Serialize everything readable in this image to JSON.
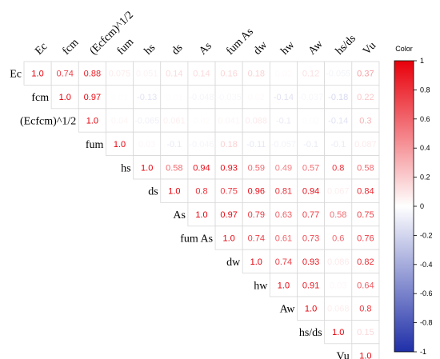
{
  "chart_data": {
    "type": "heatmap",
    "variables": [
      "Ec",
      "fcm",
      "(Ecfcm)^1/2",
      "fum",
      "hs",
      "ds",
      "As",
      "fum As",
      "dw",
      "hw",
      "Aw",
      "hs/ds",
      "Vu"
    ],
    "matrix": [
      [
        1.0,
        0.74,
        0.88,
        0.075,
        0.051,
        0.14,
        0.14,
        0.16,
        0.18,
        0.02,
        0.12,
        -0.055,
        0.37
      ],
      [
        null,
        1.0,
        0.97,
        0.01,
        -0.13,
        0.01,
        -0.048,
        -0.035,
        0.02,
        -0.14,
        -0.037,
        -0.18,
        0.22
      ],
      [
        null,
        null,
        1.0,
        0.04,
        -0.065,
        0.061,
        0.02,
        0.041,
        0.088,
        -0.1,
        0.02,
        -0.14,
        0.3
      ],
      [
        null,
        null,
        null,
        1.0,
        0.03,
        -0.1,
        -0.046,
        0.18,
        -0.11,
        -0.057,
        -0.098,
        -0.1,
        0.087
      ],
      [
        null,
        null,
        null,
        null,
        1.0,
        0.58,
        0.94,
        0.93,
        0.59,
        0.49,
        0.57,
        0.8,
        0.58
      ],
      [
        null,
        null,
        null,
        null,
        null,
        1.0,
        0.8,
        0.75,
        0.96,
        0.81,
        0.94,
        0.067,
        0.84
      ],
      [
        null,
        null,
        null,
        null,
        null,
        null,
        1.0,
        0.97,
        0.79,
        0.63,
        0.77,
        0.58,
        0.75
      ],
      [
        null,
        null,
        null,
        null,
        null,
        null,
        null,
        1.0,
        0.74,
        0.61,
        0.73,
        0.6,
        0.76
      ],
      [
        null,
        null,
        null,
        null,
        null,
        null,
        null,
        null,
        1.0,
        0.74,
        0.93,
        0.086,
        0.82
      ],
      [
        null,
        null,
        null,
        null,
        null,
        null,
        null,
        null,
        null,
        1.0,
        0.91,
        0.03,
        0.64
      ],
      [
        null,
        null,
        null,
        null,
        null,
        null,
        null,
        null,
        null,
        null,
        1.0,
        0.068,
        0.8
      ],
      [
        null,
        null,
        null,
        null,
        null,
        null,
        null,
        null,
        null,
        null,
        null,
        1.0,
        0.15
      ],
      [
        null,
        null,
        null,
        null,
        null,
        null,
        null,
        null,
        null,
        null,
        null,
        null,
        1.0
      ]
    ],
    "colorbar": {
      "title": "Color",
      "ticks": [
        1,
        0.8,
        0.6,
        0.4,
        0.2,
        0,
        -0.2,
        -0.4,
        -0.6,
        -0.8,
        -1
      ],
      "range": [
        -1,
        1
      ],
      "colors": {
        "positive": "#e8000b",
        "negative": "#1f2fa8",
        "mid": "#ffffff"
      }
    },
    "tick_labels": [
      "1",
      "0.8",
      "0.6",
      "0.4",
      "0.2",
      "0",
      "-0.2",
      "-0.4",
      "-0.6",
      "-0.8",
      "-1"
    ]
  }
}
